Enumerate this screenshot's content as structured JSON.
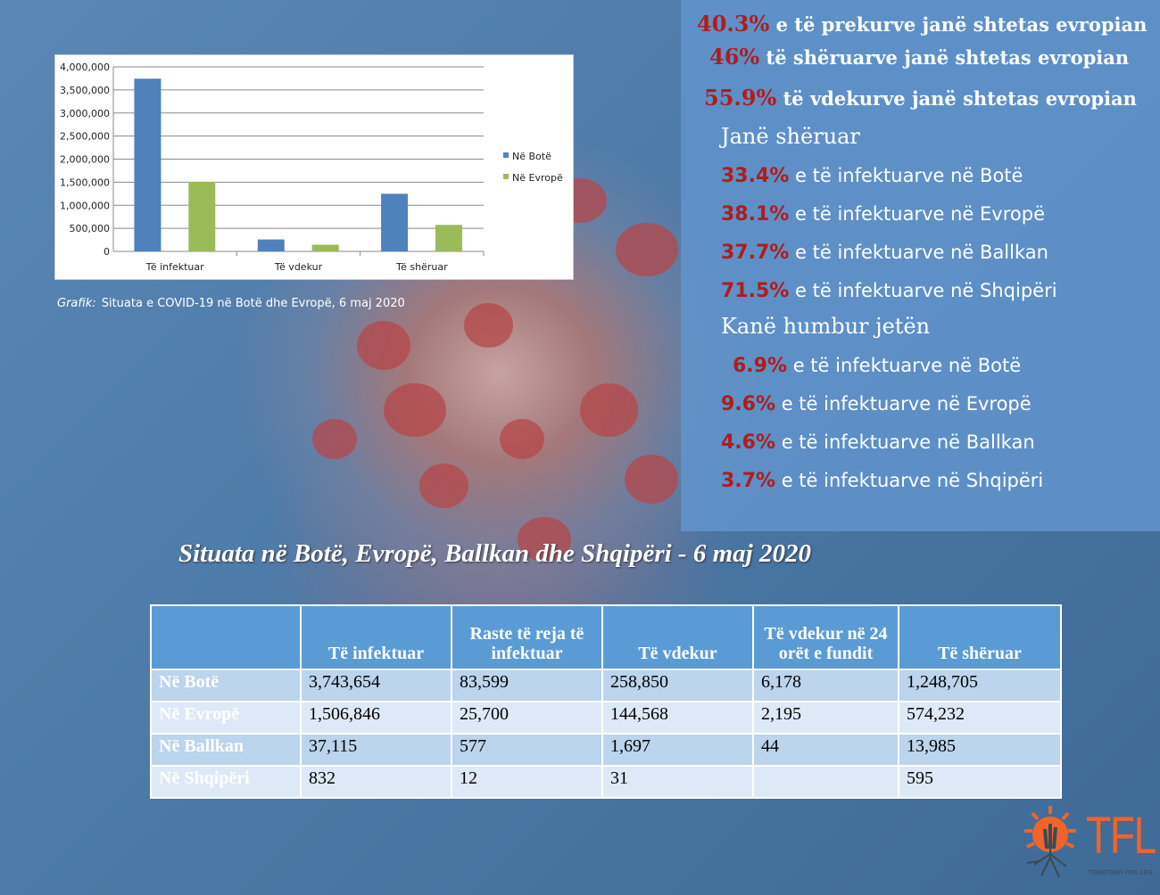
{
  "stats_panel": {
    "european_share": [
      {
        "pct": "40.3%",
        "text": "e të prekurve janë shtetas evropian"
      },
      {
        "pct": "46%",
        "text": "të shëruarve janë shtetas evropian"
      },
      {
        "pct": "55.9%",
        "text": "të vdekurve janë shtetas evropian"
      }
    ],
    "recovered_heading": "Janë shëruar",
    "recovered": [
      {
        "pct": "33.4%",
        "text": "e të infektuarve në Botë"
      },
      {
        "pct": "38.1%",
        "text": "e të infektuarve në Evropë"
      },
      {
        "pct": "37.7%",
        "text": "e të infektuarve në Ballkan"
      },
      {
        "pct": "71.5%",
        "text": "e të infektuarve në Shqipëri"
      }
    ],
    "deaths_heading": "Kanë humbur jetën",
    "deaths": [
      {
        "pct": "6.9%",
        "text": "e të infektuarve në Botë"
      },
      {
        "pct": "9.6%",
        "text": "e të infektuarve në Evropë"
      },
      {
        "pct": "4.6%",
        "text": "e të infektuarve në Ballkan"
      },
      {
        "pct": "3.7%",
        "text": "e të infektuarve në Shqipëri"
      }
    ]
  },
  "chart_data": {
    "type": "bar",
    "title": "",
    "categories": [
      "Të infektuar",
      "Të vdekur",
      "Të shëruar"
    ],
    "series": [
      {
        "name": "Në Botë",
        "color": "#4f81bd",
        "values": [
          3743654,
          258850,
          1248705
        ]
      },
      {
        "name": "Në Evropë",
        "color": "#9bbb59",
        "values": [
          1506846,
          144568,
          574232
        ]
      }
    ],
    "ylim": [
      0,
      4000000
    ],
    "yticks": [
      "0",
      "500,000",
      "1,000,000",
      "1,500,000",
      "2,000,000",
      "2,500,000",
      "3,000,000",
      "3,500,000",
      "4,000,000"
    ],
    "grid": true,
    "legend": "right",
    "xlabel": "",
    "ylabel": ""
  },
  "caption": {
    "prefix": "Grafik:",
    "text": "Situata e COVID-19 në Botë dhe Evropë, 6 maj 2020"
  },
  "table": {
    "title": "Situata në Botë, Evropë, Ballkan dhe Shqipëri - 6 maj 2020",
    "headers": [
      "",
      "Të infektuar",
      "Raste të reja të infektuar",
      "Të vdekur",
      "Të vdekur në 24 orët e fundit",
      "Të shëruar"
    ],
    "rows": [
      [
        "Në Botë",
        "3,743,654",
        "83,599",
        "258,850",
        "6,178",
        "1,248,705"
      ],
      [
        "Në Evropë",
        "1,506,846",
        "25,700",
        "144,568",
        "2,195",
        "574,232"
      ],
      [
        "Në Ballkan",
        "37,115",
        "577",
        "1,697",
        "44",
        "13,985"
      ],
      [
        "Në Shqipëri",
        "832",
        "12",
        "31",
        "",
        "595"
      ]
    ]
  },
  "logo": {
    "name": "TFL",
    "tagline": "TOGETHER FOR LIFE"
  }
}
